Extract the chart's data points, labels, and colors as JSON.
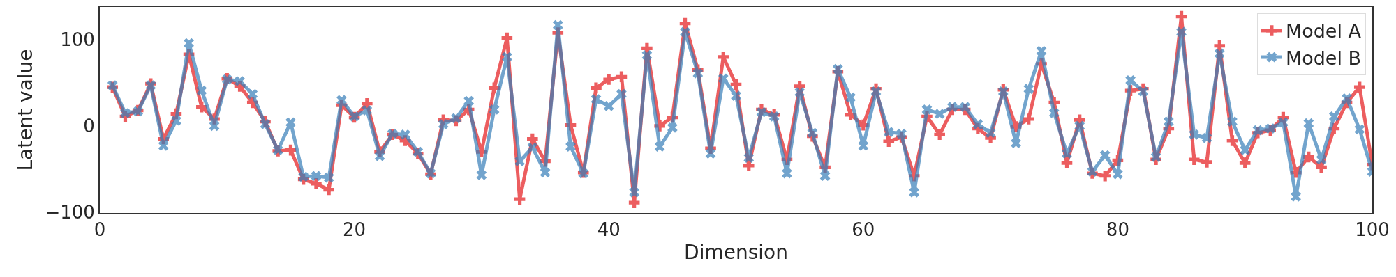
{
  "chart_data": {
    "type": "line",
    "xlabel": "Dimension",
    "ylabel": "Latent value",
    "x": [
      1,
      2,
      3,
      4,
      5,
      6,
      7,
      8,
      9,
      10,
      11,
      12,
      13,
      14,
      15,
      16,
      17,
      18,
      19,
      20,
      21,
      22,
      23,
      24,
      25,
      26,
      27,
      28,
      29,
      30,
      31,
      32,
      33,
      34,
      35,
      36,
      37,
      38,
      39,
      40,
      41,
      42,
      43,
      44,
      45,
      46,
      47,
      48,
      49,
      50,
      51,
      52,
      53,
      54,
      55,
      56,
      57,
      58,
      59,
      60,
      61,
      62,
      63,
      64,
      65,
      66,
      67,
      68,
      69,
      70,
      71,
      72,
      73,
      74,
      75,
      76,
      77,
      78,
      79,
      80,
      81,
      82,
      83,
      84,
      85,
      86,
      87,
      88,
      89,
      90,
      91,
      92,
      93,
      94,
      95,
      96,
      97,
      98,
      99,
      100
    ],
    "series": [
      {
        "name": "Model A",
        "color": "#e41a1c",
        "marker": "plus",
        "values": [
          45,
          11,
          18,
          49,
          -15,
          14,
          83,
          22,
          8,
          55,
          46,
          27,
          5,
          -29,
          -28,
          -62,
          -67,
          -74,
          24,
          10,
          26,
          -30,
          -10,
          -17,
          -32,
          -56,
          7,
          6,
          19,
          -30,
          44,
          102,
          -85,
          -15,
          -41,
          108,
          1,
          -54,
          44,
          54,
          57,
          -89,
          90,
          0,
          10,
          119,
          65,
          -26,
          80,
          48,
          -46,
          19,
          13,
          -39,
          46,
          -12,
          -48,
          63,
          13,
          1,
          43,
          -18,
          -13,
          -58,
          11,
          -10,
          19,
          19,
          -3,
          -14,
          42,
          -1,
          8,
          72,
          27,
          -43,
          7,
          -55,
          -58,
          -40,
          41,
          43,
          -39,
          -3,
          127,
          -39,
          -42,
          93,
          -17,
          -43,
          -8,
          -5,
          10,
          -54,
          -36,
          -48,
          -3,
          27,
          45,
          -45
        ]
      },
      {
        "name": "Model B",
        "color": "#377eb8",
        "marker": "cross",
        "values": [
          47,
          15,
          17,
          47,
          -23,
          6,
          96,
          41,
          0,
          54,
          52,
          37,
          2,
          -28,
          4,
          -59,
          -58,
          -60,
          30,
          11,
          18,
          -35,
          -9,
          -10,
          -30,
          -55,
          2,
          9,
          29,
          -57,
          19,
          80,
          -41,
          -25,
          -54,
          117,
          -24,
          -55,
          31,
          23,
          37,
          -77,
          82,
          -24,
          -2,
          109,
          61,
          -32,
          55,
          35,
          -37,
          16,
          11,
          -55,
          39,
          -8,
          -58,
          66,
          33,
          -23,
          40,
          -7,
          -9,
          -77,
          19,
          14,
          22,
          22,
          2,
          -8,
          40,
          -20,
          43,
          87,
          15,
          -32,
          0,
          -53,
          -34,
          -56,
          53,
          40,
          -36,
          5,
          109,
          -10,
          -14,
          84,
          5,
          -28,
          -5,
          -3,
          4,
          -82,
          3,
          -39,
          11,
          32,
          -4,
          -53
        ]
      }
    ],
    "xlim": [
      0,
      100
    ],
    "xticks": [
      0,
      20,
      40,
      60,
      80,
      100
    ],
    "ylim": [
      -101,
      138
    ],
    "yticks": [
      {
        "value": -100,
        "label": "−100"
      },
      0,
      100
    ],
    "grid": false,
    "legend": "top right",
    "line_style": "solid"
  }
}
